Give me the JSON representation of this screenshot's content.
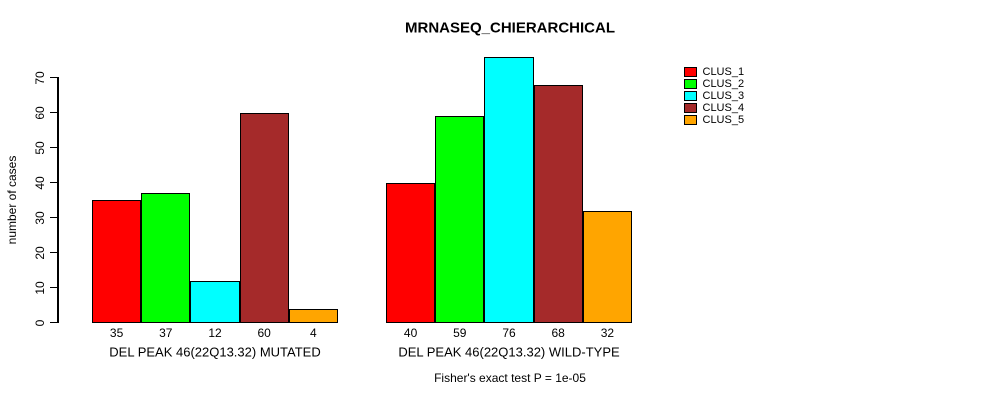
{
  "chart_data": {
    "type": "bar",
    "title": "MRNASEQ_CHIERARCHICAL",
    "ylabel": "number of cases",
    "ylim": [
      0,
      70
    ],
    "yticks": [
      0,
      10,
      20,
      30,
      40,
      50,
      60,
      70
    ],
    "grid": false,
    "legend_position": "top-right-outside",
    "categories": [
      "DEL PEAK 46(22Q13.32) MUTATED",
      "DEL PEAK 46(22Q13.32) WILD-TYPE"
    ],
    "series": [
      {
        "name": "CLUS_1",
        "color": "#FF0000",
        "values": [
          35,
          40
        ]
      },
      {
        "name": "CLUS_2",
        "color": "#00FF00",
        "values": [
          37,
          59
        ]
      },
      {
        "name": "CLUS_3",
        "color": "#00FFFF",
        "values": [
          12,
          76
        ]
      },
      {
        "name": "CLUS_4",
        "color": "#A52A2A",
        "values": [
          60,
          68
        ]
      },
      {
        "name": "CLUS_5",
        "color": "#FFA500",
        "values": [
          4,
          32
        ]
      }
    ],
    "bar_value_labels": [
      [
        35,
        37,
        12,
        60,
        4
      ],
      [
        40,
        59,
        76,
        68,
        32
      ]
    ],
    "annotation": "Fisher's exact test P = 1e-05",
    "background_color": "#FFFFFF",
    "axis_color": "#000000"
  }
}
